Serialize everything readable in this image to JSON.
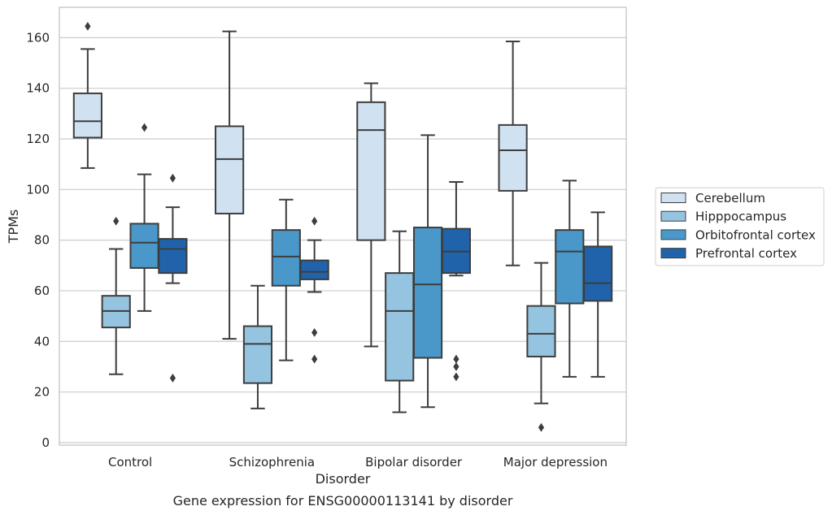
{
  "chart_data": {
    "type": "box",
    "caption": "Gene expression for ENSG00000113141 by disorder",
    "xlabel": "Disorder",
    "ylabel": "TPMs",
    "ylim": [
      -1,
      172
    ],
    "yticks": [
      0,
      20,
      40,
      60,
      80,
      100,
      120,
      140,
      160
    ],
    "grid": "horizontal",
    "legend_position": "right",
    "categories": [
      "Control",
      "Schizophrenia",
      "Bipolar disorder",
      "Major depression"
    ],
    "series": [
      {
        "name": "Cerebellum",
        "color": "#d0e1f2",
        "boxes": [
          {
            "whisker_low": 108.5,
            "q1": 120.5,
            "median": 127,
            "q3": 138,
            "whisker_high": 155.5,
            "outliers": [
              164.5
            ]
          },
          {
            "whisker_low": 41,
            "q1": 90.5,
            "median": 112,
            "q3": 125,
            "whisker_high": 162.5,
            "outliers": []
          },
          {
            "whisker_low": 38,
            "q1": 80,
            "median": 123.5,
            "q3": 134.5,
            "whisker_high": 142,
            "outliers": []
          },
          {
            "whisker_low": 70,
            "q1": 99.5,
            "median": 115.5,
            "q3": 125.5,
            "whisker_high": 158.5,
            "outliers": []
          }
        ]
      },
      {
        "name": "Hipppocampus",
        "color": "#94c4df",
        "boxes": [
          {
            "whisker_low": 27,
            "q1": 45.5,
            "median": 52,
            "q3": 58,
            "whisker_high": 76.5,
            "outliers": [
              87.5
            ]
          },
          {
            "whisker_low": 13.5,
            "q1": 23.5,
            "median": 39,
            "q3": 46,
            "whisker_high": 62,
            "outliers": []
          },
          {
            "whisker_low": 12,
            "q1": 24.5,
            "median": 52,
            "q3": 67,
            "whisker_high": 83.5,
            "outliers": []
          },
          {
            "whisker_low": 15.5,
            "q1": 34,
            "median": 43,
            "q3": 54,
            "whisker_high": 71,
            "outliers": [
              6
            ]
          }
        ]
      },
      {
        "name": "Orbitofrontal cortex",
        "color": "#4a98c9",
        "boxes": [
          {
            "whisker_low": 52,
            "q1": 69,
            "median": 79,
            "q3": 86.5,
            "whisker_high": 106,
            "outliers": [
              124.5
            ]
          },
          {
            "whisker_low": 32.5,
            "q1": 62,
            "median": 73.5,
            "q3": 84,
            "whisker_high": 96,
            "outliers": []
          },
          {
            "whisker_low": 14,
            "q1": 33.5,
            "median": 62.5,
            "q3": 85,
            "whisker_high": 121.5,
            "outliers": []
          },
          {
            "whisker_low": 26,
            "q1": 55,
            "median": 75.5,
            "q3": 84,
            "whisker_high": 103.5,
            "outliers": []
          }
        ]
      },
      {
        "name": "Prefrontal cortex",
        "color": "#2163aa",
        "boxes": [
          {
            "whisker_low": 63,
            "q1": 67,
            "median": 76.5,
            "q3": 80.5,
            "whisker_high": 93,
            "outliers": [
              104.5,
              25.5
            ]
          },
          {
            "whisker_low": 59.5,
            "q1": 64.5,
            "median": 67.5,
            "q3": 72,
            "whisker_high": 80,
            "outliers": [
              87.5,
              43.5,
              33
            ]
          },
          {
            "whisker_low": 66,
            "q1": 67,
            "median": 75.5,
            "q3": 84.5,
            "whisker_high": 103,
            "outliers": [
              33,
              30,
              26
            ]
          },
          {
            "whisker_low": 26,
            "q1": 56,
            "median": 63,
            "q3": 77.5,
            "whisker_high": 91,
            "outliers": []
          }
        ]
      }
    ]
  }
}
